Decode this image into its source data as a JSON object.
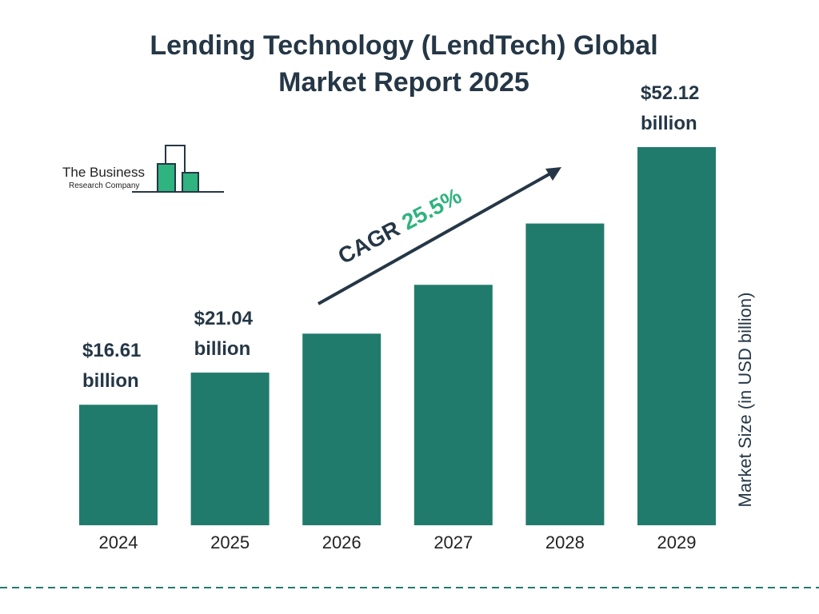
{
  "chart_data": {
    "type": "bar",
    "title": "Lending Technology (LendTech) Global Market Report 2025",
    "logo": {
      "line1": "The Business",
      "line2": "Research Company"
    },
    "categories": [
      "2024",
      "2025",
      "2026",
      "2027",
      "2028",
      "2029"
    ],
    "values": [
      16.61,
      21.04,
      26.41,
      33.14,
      41.59,
      52.12
    ],
    "value_labels": [
      "$16.61 billion",
      "$21.04 billion",
      null,
      null,
      null,
      "$52.12 billion"
    ],
    "color": "#217b6d",
    "y_label": "Market Size (in USD billion)",
    "annotation": {
      "label": "CAGR",
      "value_label": "25.5%"
    }
  }
}
